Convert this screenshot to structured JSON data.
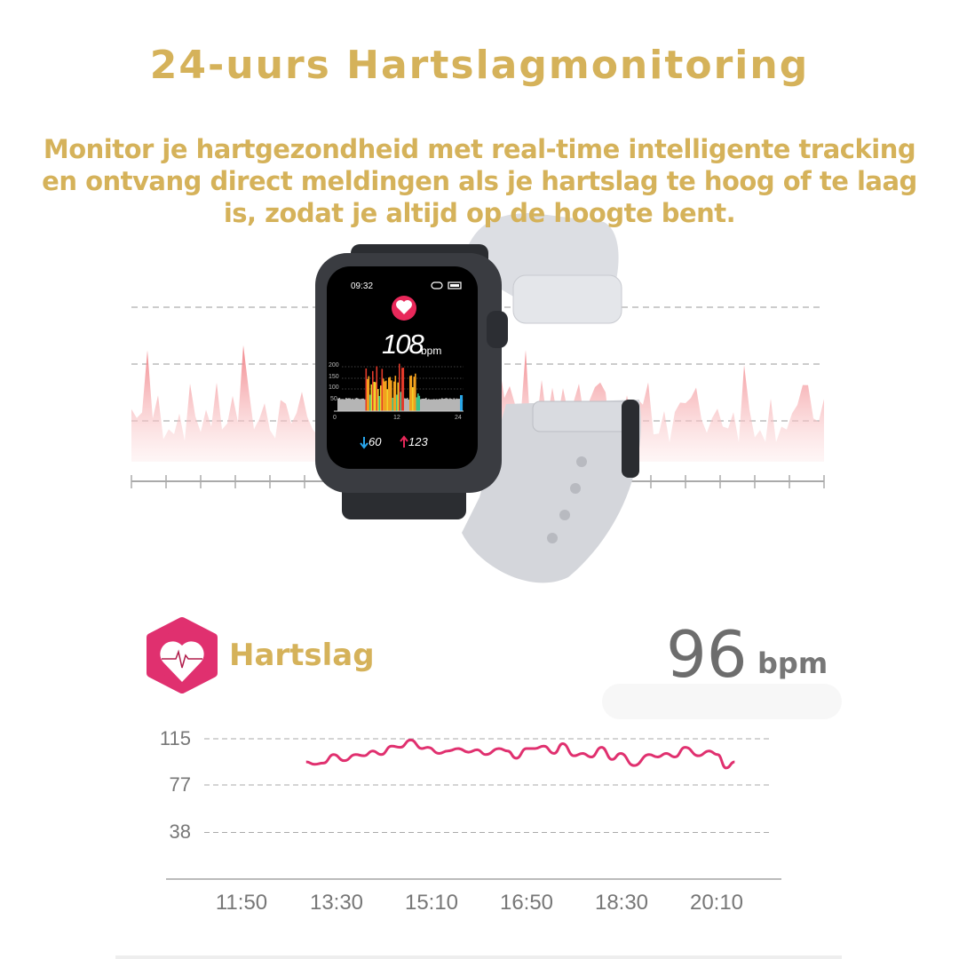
{
  "header": {
    "title": "24-uurs Hartslagmonitoring",
    "subtitle": "Monitor je hartgezondheid met real-time intelligente tracking en ontvang direct meldingen als je hartslag te hoog of te laag is, zodat je altijd op de hoogte bent."
  },
  "watch": {
    "time": "09:32",
    "heart_rate": "108",
    "unit": "bpm",
    "chart_y_ticks": [
      "200",
      "150",
      "100",
      "50"
    ],
    "chart_x_ticks": [
      "0",
      "12",
      "24"
    ],
    "min_value": "60",
    "max_value": "123",
    "min_icon": "arrow-down-icon",
    "max_icon": "arrow-up-icon",
    "colors": {
      "screen": "#000000",
      "band": "#d9dbe0",
      "heart_badge": "#e8285a"
    }
  },
  "heart_card": {
    "label": "Hartslag",
    "value": "96",
    "unit": "bpm",
    "icon": "heart-pulse-icon",
    "colors": {
      "icon": "#e0306f",
      "label": "#d5b25a",
      "line": "#e0306f"
    }
  },
  "chart_data": {
    "type": "line",
    "xlabel": "",
    "ylabel": "",
    "y_ticks": [
      115,
      77,
      38
    ],
    "x_ticks": [
      "11:50",
      "13:30",
      "15:10",
      "16:50",
      "18:30",
      "20:10"
    ],
    "grid": true,
    "series": [
      {
        "color": "#e0306f",
        "x": [
          "12:58",
          "13:07",
          "13:16",
          "13:27",
          "13:38",
          "13:50",
          "13:59",
          "14:08",
          "14:17",
          "14:28",
          "14:37",
          "14:48",
          "15:00",
          "15:06",
          "15:18",
          "15:27",
          "15:38",
          "15:49",
          "15:58",
          "16:07",
          "16:21",
          "16:30",
          "16:39",
          "16:50",
          "16:59",
          "17:08",
          "17:19",
          "17:28",
          "17:40",
          "17:49",
          "17:58",
          "18:09",
          "18:20",
          "18:29",
          "18:43",
          "18:59",
          "19:08",
          "19:17",
          "19:26",
          "19:37",
          "19:51",
          "20:02",
          "20:11",
          "20:20",
          "20:29"
        ],
        "y": [
          96,
          94,
          95,
          102,
          97,
          102,
          101,
          105,
          102,
          109,
          108,
          114,
          107,
          108,
          103,
          105,
          107,
          104,
          106,
          102,
          107,
          105,
          99,
          107,
          107,
          109,
          103,
          111,
          101,
          103,
          100,
          108,
          98,
          103,
          93,
          102,
          100,
          103,
          100,
          108,
          101,
          105,
          102,
          91,
          96
        ]
      }
    ]
  }
}
